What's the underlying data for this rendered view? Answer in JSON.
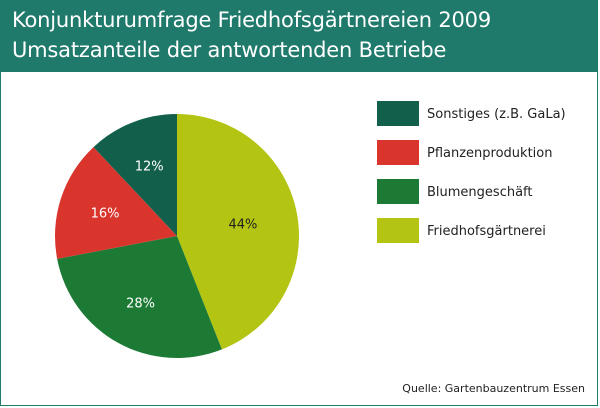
{
  "header": {
    "title_line1": "Konjunkturumfrage Friedhofsgärtnereien 2009",
    "title_line2": "Umsatzanteile der antwortenden Betriebe"
  },
  "source": "Quelle: Gartenbauzentrum Essen",
  "colors": {
    "header_bg": "#1f7a6b",
    "sonstiges": "#12604c",
    "pflanzen": "#d9352d",
    "blumen": "#1c7a35",
    "friedhof": "#b3c512"
  },
  "chart_data": {
    "type": "pie",
    "title": "Umsatzanteile der antwortenden Betriebe",
    "legend_position": "right",
    "slices": [
      {
        "label": "Friedhofsgärtnerei",
        "value": 44,
        "display": "44%",
        "color": "#b3c512",
        "text_color": "#222222"
      },
      {
        "label": "Blumengeschäft",
        "value": 28,
        "display": "28%",
        "color": "#1c7a35",
        "text_color": "#ffffff"
      },
      {
        "label": "Pflanzenproduktion",
        "value": 16,
        "display": "16%",
        "color": "#d9352d",
        "text_color": "#ffffff"
      },
      {
        "label": "Sonstiges (z.B. GaLa)",
        "value": 12,
        "display": "12%",
        "color": "#12604c",
        "text_color": "#ffffff"
      }
    ],
    "legend_order": [
      "Sonstiges (z.B. GaLa)",
      "Pflanzenproduktion",
      "Blumengeschäft",
      "Friedhofsgärtnerei"
    ]
  }
}
